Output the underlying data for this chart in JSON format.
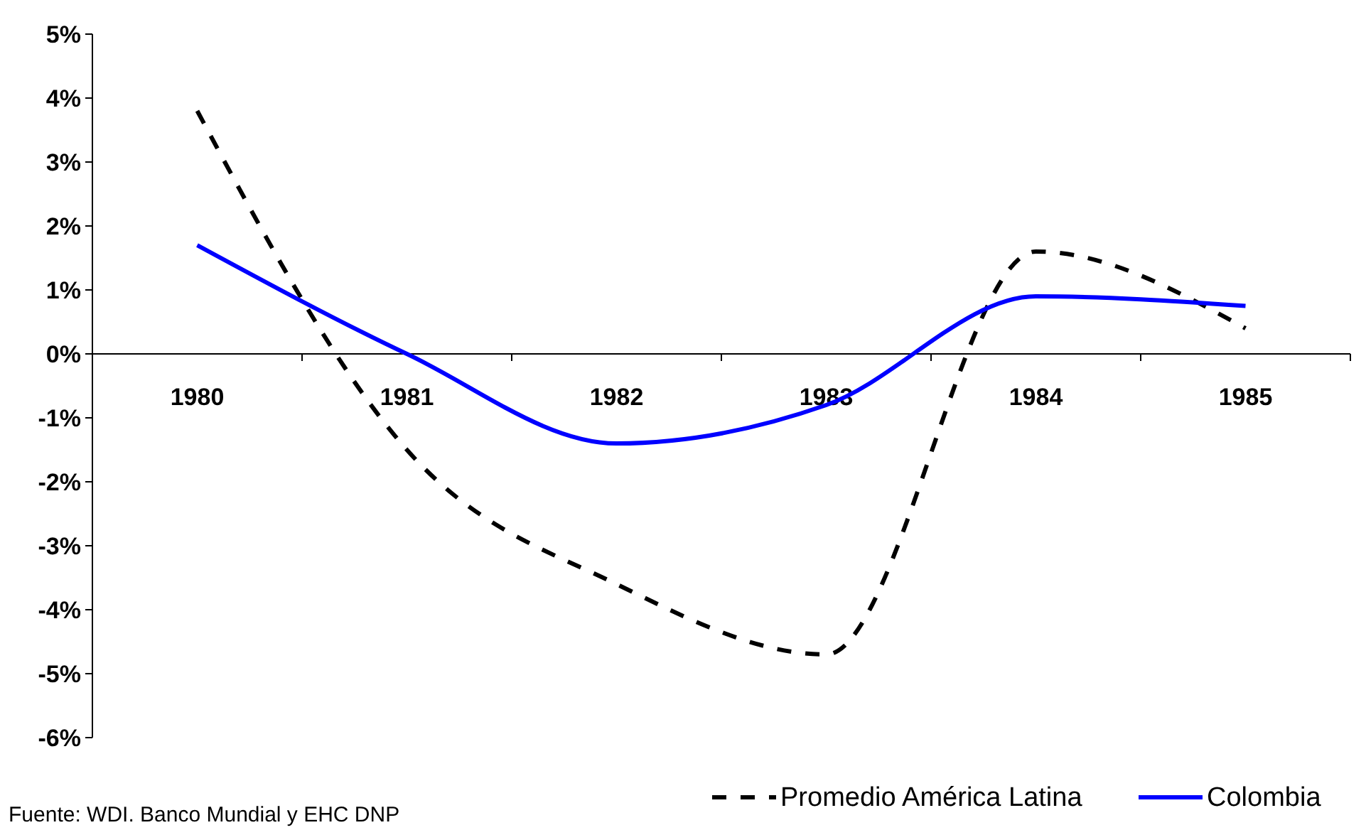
{
  "chart_data": {
    "type": "line",
    "categories": [
      "1980",
      "1981",
      "1982",
      "1983",
      "1984",
      "1985"
    ],
    "series": [
      {
        "name": "Promedio América Latina",
        "color": "#000000",
        "line_style": "dashed",
        "values": [
          3.8,
          -1.5,
          -3.6,
          -4.7,
          1.6,
          0.4
        ]
      },
      {
        "name": "Colombia",
        "color": "#0000ff",
        "line_style": "solid",
        "values": [
          1.7,
          0.0,
          -1.4,
          -0.8,
          0.9,
          0.75
        ]
      }
    ],
    "ylim": [
      -6,
      5
    ],
    "yticks": [
      {
        "value": -6,
        "label": "-6%"
      },
      {
        "value": -5,
        "label": "-5%"
      },
      {
        "value": -4,
        "label": "-4%"
      },
      {
        "value": -3,
        "label": "-3%"
      },
      {
        "value": -2,
        "label": "-2%"
      },
      {
        "value": -1,
        "label": "-1%"
      },
      {
        "value": 0,
        "label": "0%"
      },
      {
        "value": 1,
        "label": "1%"
      },
      {
        "value": 2,
        "label": "2%"
      },
      {
        "value": 3,
        "label": "3%"
      },
      {
        "value": 4,
        "label": "4%"
      },
      {
        "value": 5,
        "label": "5%"
      }
    ],
    "grid": false,
    "legend": "bottom right",
    "annotations": [
      "Fuente: WDI. Banco Mundial y EHC DNP"
    ]
  }
}
